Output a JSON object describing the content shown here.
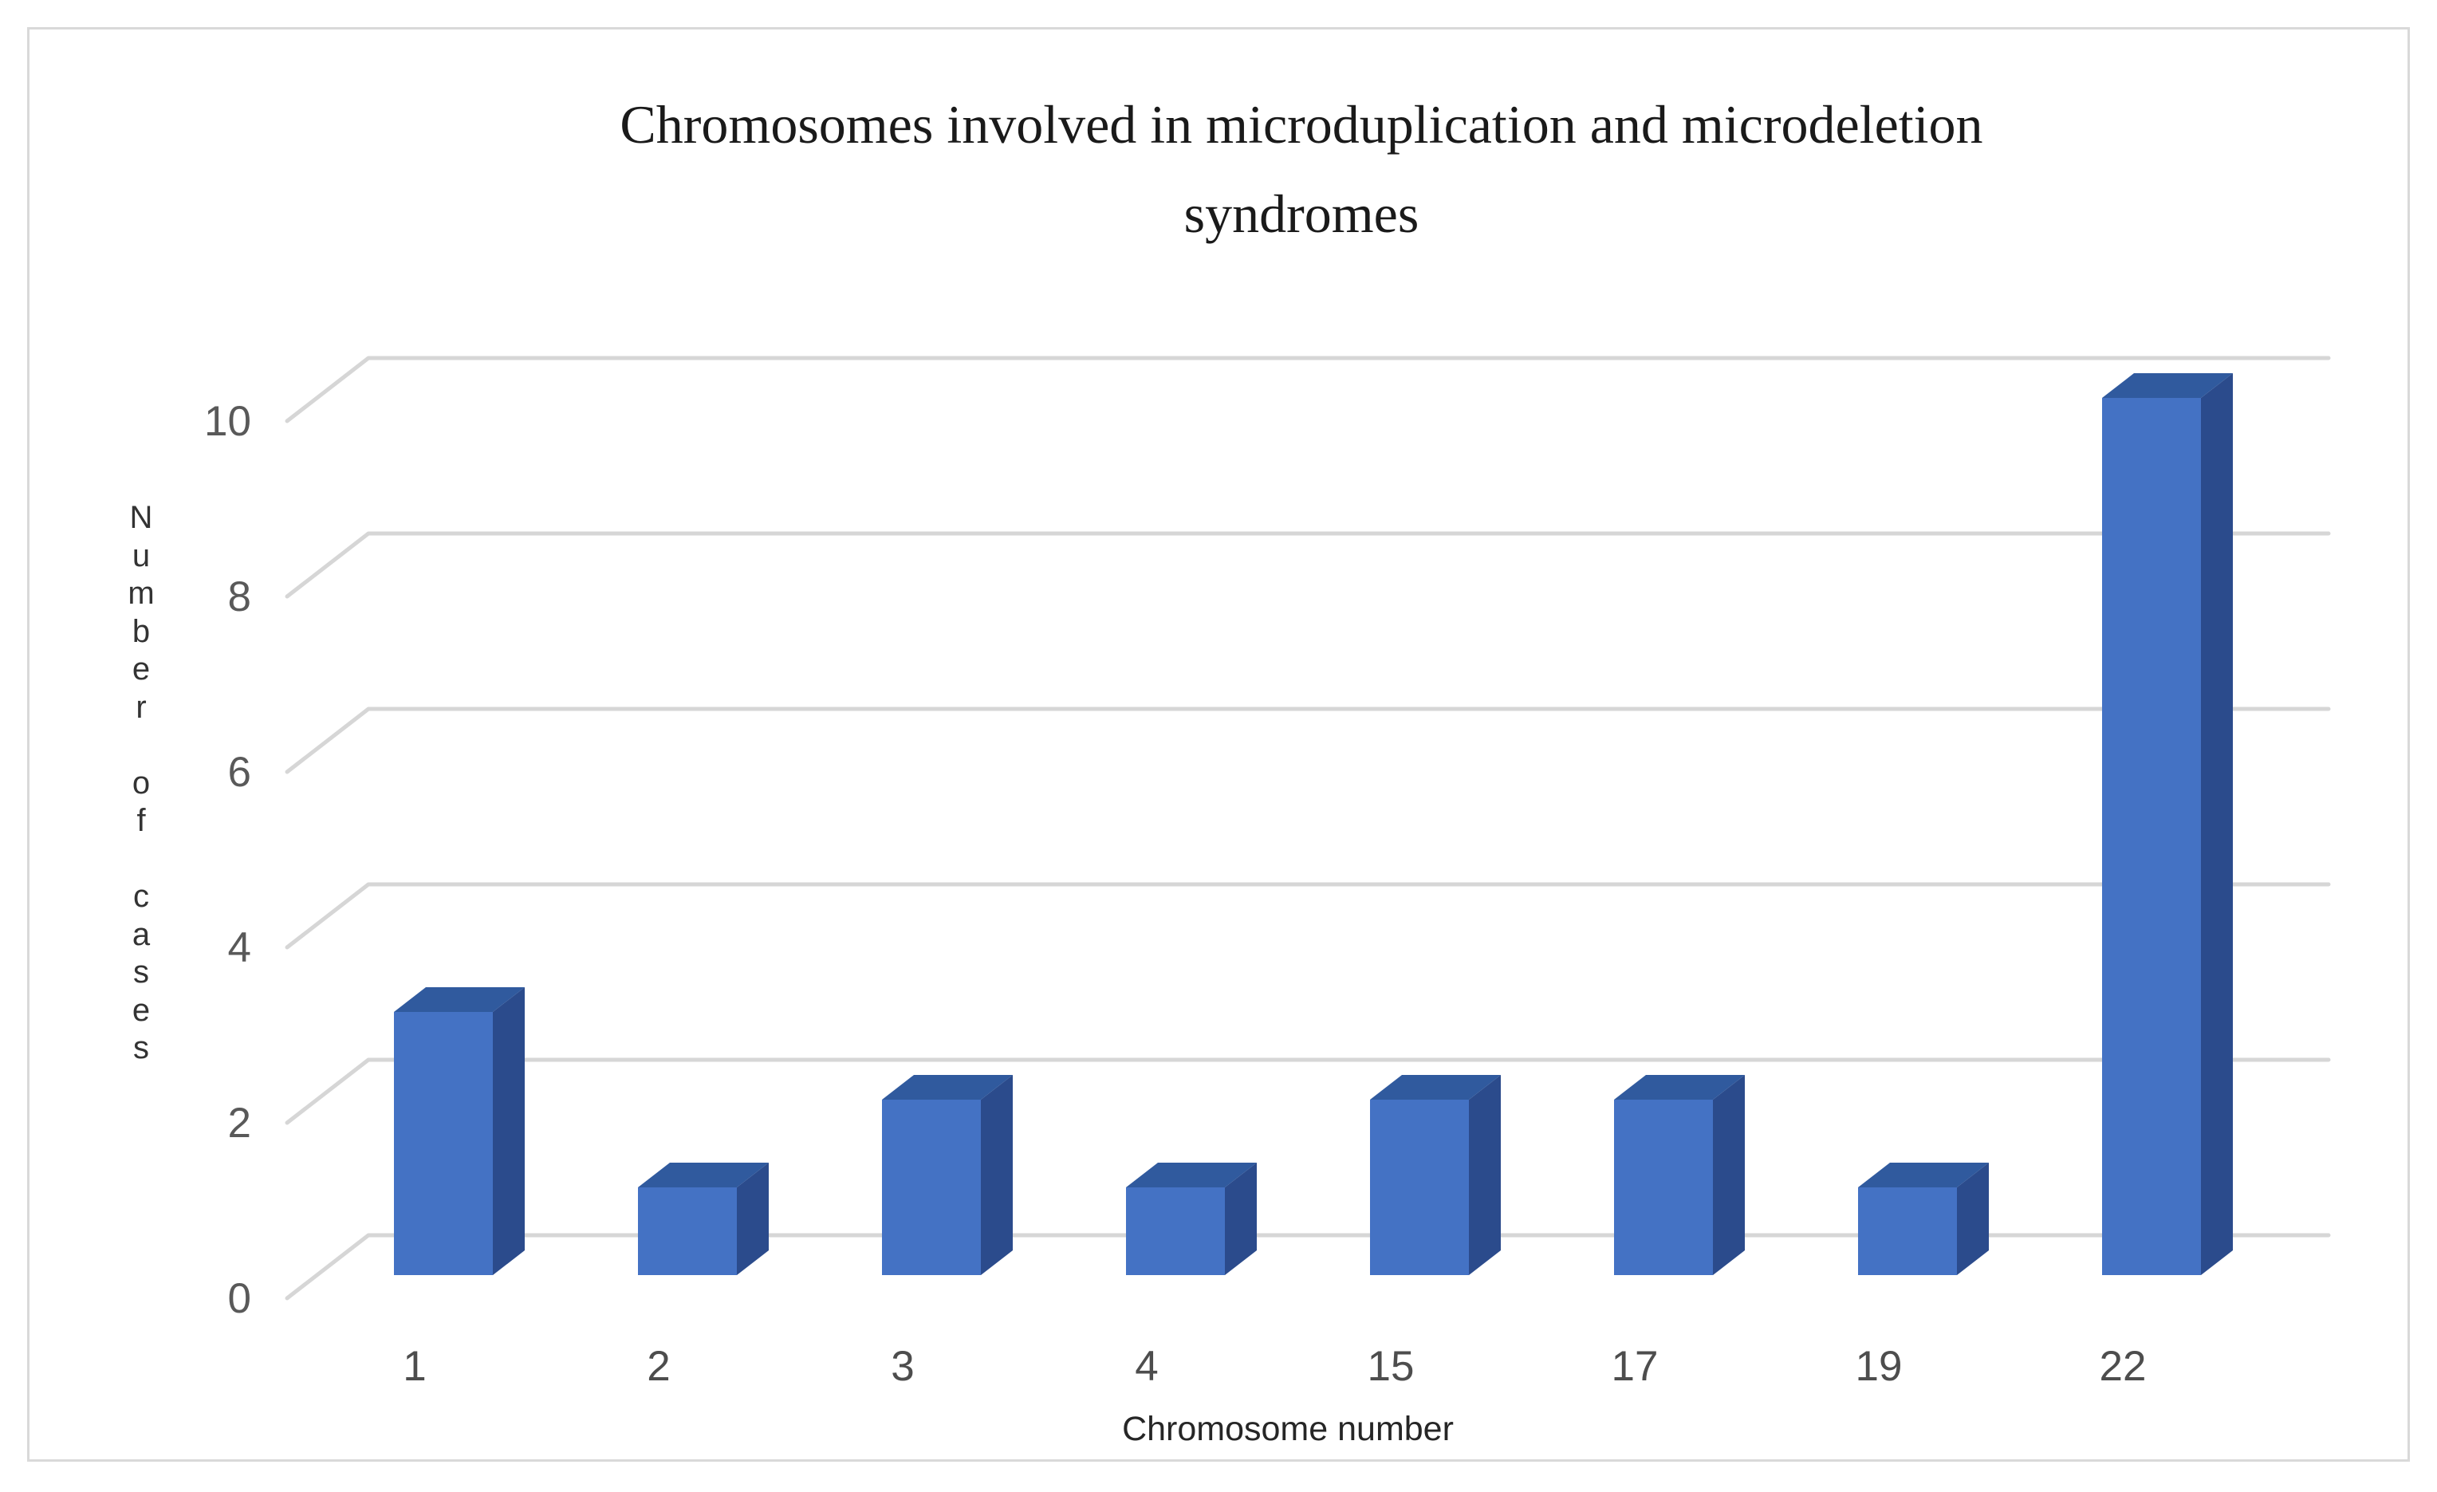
{
  "figure": {
    "title_lines": [
      "Chromosomes involved in microduplication and microdeletion",
      "syndromes"
    ]
  },
  "chart_data": {
    "type": "bar",
    "style": "3d-column",
    "title": "Chromosomes involved in microduplication and microdeletion syndromes",
    "categories": [
      "1",
      "2",
      "3",
      "4",
      "15",
      "17",
      "19",
      "22"
    ],
    "values": [
      3,
      1,
      2,
      1,
      2,
      2,
      1,
      10
    ],
    "xlabel": "Chromosome number",
    "ylabel": "Number of cases",
    "yticks": [
      0,
      2,
      4,
      6,
      8,
      10
    ],
    "ylim": [
      0,
      10
    ],
    "grid": true,
    "legend": false,
    "colors": {
      "bar_front": "#4472C4",
      "bar_top": "#305A9E",
      "bar_side": "#2B4B8C",
      "gridline": "#D6D6D6",
      "tick_label": "#595959",
      "category_label": "#4D4D4D",
      "axis_title": "#262626",
      "title": "#1A1A1A",
      "border": "#D9D9D9",
      "background": "#FFFFFF"
    }
  }
}
